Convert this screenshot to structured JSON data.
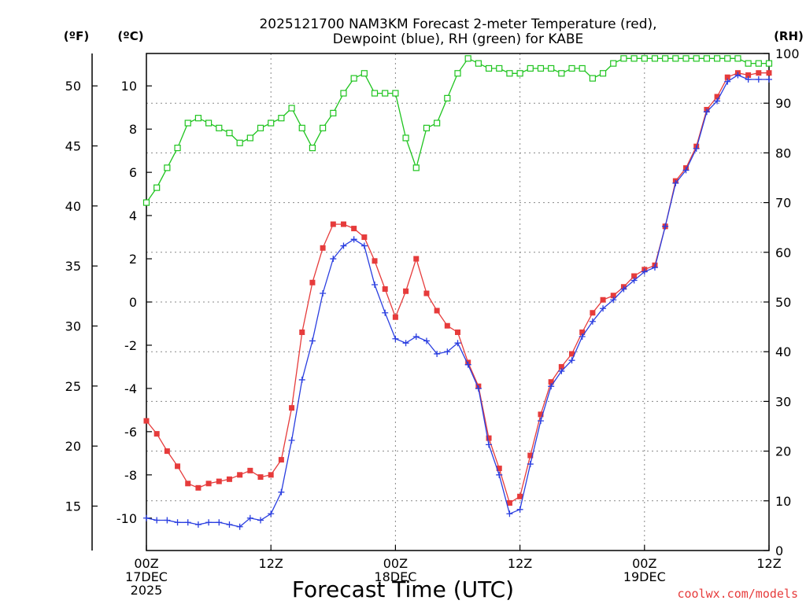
{
  "chart_data": {
    "type": "line",
    "title": [
      "2025121700 NAM3KM Forecast 2-meter Temperature (red),",
      "Dewpoint (blue), RH (green) for KABE"
    ],
    "xlabel": "Forecast Time (UTC)",
    "credit": "coolwx.com/models",
    "units": {
      "fahrenheit": "(ºF)",
      "celsius": "(ºC)",
      "rh": "(RH)"
    },
    "x_ticks": [
      {
        "hour": 0,
        "lines": [
          "00Z",
          "17DEC",
          "2025"
        ]
      },
      {
        "hour": 12,
        "lines": [
          "12Z"
        ]
      },
      {
        "hour": 24,
        "lines": [
          "00Z",
          "18DEC"
        ]
      },
      {
        "hour": 36,
        "lines": [
          "12Z"
        ]
      },
      {
        "hour": 48,
        "lines": [
          "00Z",
          "19DEC"
        ]
      },
      {
        "hour": 60,
        "lines": [
          "12Z"
        ]
      }
    ],
    "xlim": [
      0,
      60
    ],
    "celsius_axis": {
      "ylim": [
        -11.5,
        11.5
      ],
      "ticks": [
        -10,
        -8,
        -6,
        -4,
        -2,
        0,
        2,
        4,
        6,
        8,
        10
      ]
    },
    "fahrenheit_axis": {
      "ticks": [
        15,
        20,
        25,
        30,
        35,
        40,
        45,
        50
      ]
    },
    "rh_axis": {
      "ylim": [
        0,
        100
      ],
      "ticks": [
        0,
        10,
        20,
        30,
        40,
        50,
        60,
        70,
        80,
        90,
        100
      ]
    },
    "colors": {
      "temperature": "#e63b3b",
      "dewpoint": "#2a3ee0",
      "rh": "#1fc41f"
    },
    "series": [
      {
        "name": "Temperature",
        "units": "C",
        "marker": "filled-square",
        "x": [
          0,
          1,
          2,
          3,
          4,
          5,
          6,
          7,
          8,
          9,
          10,
          11,
          12,
          13,
          14,
          15,
          16,
          17,
          18,
          19,
          20,
          21,
          22,
          23,
          24,
          25,
          26,
          27,
          28,
          29,
          30,
          31,
          32,
          33,
          34,
          35,
          36,
          37,
          38,
          39,
          40,
          41,
          42,
          43,
          44,
          45,
          46,
          47,
          48,
          49,
          50,
          51,
          52,
          53,
          54,
          55,
          56,
          57,
          58,
          59,
          60
        ],
        "values": [
          -5.5,
          -6.1,
          -6.9,
          -7.6,
          -8.4,
          -8.6,
          -8.4,
          -8.3,
          -8.2,
          -8.0,
          -7.8,
          -8.1,
          -8.0,
          -7.3,
          -4.9,
          -1.4,
          0.9,
          2.5,
          3.6,
          3.6,
          3.4,
          3.0,
          1.9,
          0.6,
          -0.7,
          0.5,
          2.0,
          0.4,
          -0.4,
          -1.1,
          -1.4,
          -2.8,
          -3.9,
          -6.3,
          -7.7,
          -9.3,
          -9.0,
          -7.1,
          -5.2,
          -3.7,
          -3.0,
          -2.4,
          -1.4,
          -0.5,
          0.1,
          0.3,
          0.7,
          1.2,
          1.5,
          1.7,
          3.5,
          5.6,
          6.2,
          7.2,
          8.9,
          9.5,
          10.4,
          10.6,
          10.5,
          10.6,
          10.6
        ]
      },
      {
        "name": "Dewpoint",
        "units": "C",
        "marker": "plus",
        "x": [
          0,
          1,
          2,
          3,
          4,
          5,
          6,
          7,
          8,
          9,
          10,
          11,
          12,
          13,
          14,
          15,
          16,
          17,
          18,
          19,
          20,
          21,
          22,
          23,
          24,
          25,
          26,
          27,
          28,
          29,
          30,
          31,
          32,
          33,
          34,
          35,
          36,
          37,
          38,
          39,
          40,
          41,
          42,
          43,
          44,
          45,
          46,
          47,
          48,
          49,
          50,
          51,
          52,
          53,
          54,
          55,
          56,
          57,
          58,
          59,
          60
        ],
        "values": [
          -10.0,
          -10.1,
          -10.1,
          -10.2,
          -10.2,
          -10.3,
          -10.2,
          -10.2,
          -10.3,
          -10.4,
          -10.0,
          -10.1,
          -9.8,
          -8.8,
          -6.4,
          -3.6,
          -1.8,
          0.4,
          2.0,
          2.6,
          2.9,
          2.6,
          0.8,
          -0.5,
          -1.7,
          -1.9,
          -1.6,
          -1.8,
          -2.4,
          -2.3,
          -1.9,
          -2.9,
          -4.0,
          -6.6,
          -8.0,
          -9.8,
          -9.6,
          -7.5,
          -5.5,
          -3.9,
          -3.2,
          -2.7,
          -1.6,
          -0.9,
          -0.3,
          0.1,
          0.6,
          1.0,
          1.4,
          1.6,
          3.5,
          5.5,
          6.1,
          7.1,
          8.8,
          9.3,
          10.2,
          10.5,
          10.3,
          10.3,
          10.3
        ]
      },
      {
        "name": "RH",
        "units": "%",
        "marker": "open-square",
        "x": [
          0,
          1,
          2,
          3,
          4,
          5,
          6,
          7,
          8,
          9,
          10,
          11,
          12,
          13,
          14,
          15,
          16,
          17,
          18,
          19,
          20,
          21,
          22,
          23,
          24,
          25,
          26,
          27,
          28,
          29,
          30,
          31,
          32,
          33,
          34,
          35,
          36,
          37,
          38,
          39,
          40,
          41,
          42,
          43,
          44,
          45,
          46,
          47,
          48,
          49,
          50,
          51,
          52,
          53,
          54,
          55,
          56,
          57,
          58,
          59,
          60
        ],
        "values": [
          70,
          73,
          77,
          81,
          86,
          87,
          86,
          85,
          84,
          82,
          83,
          85,
          86,
          87,
          89,
          85,
          81,
          85,
          88,
          92,
          95,
          96,
          92,
          92,
          92,
          83,
          77,
          85,
          86,
          91,
          96,
          99,
          98,
          97,
          97,
          96,
          96,
          97,
          97,
          97,
          96,
          97,
          97,
          95,
          96,
          98,
          99,
          99,
          99,
          99,
          99,
          99,
          99,
          99,
          99,
          99,
          99,
          99,
          98,
          98,
          98
        ]
      }
    ]
  }
}
